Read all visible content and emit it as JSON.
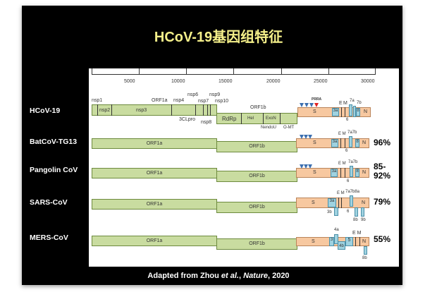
{
  "title": "HCoV-19基因组特征",
  "caption": {
    "prefix": "Adapted from Zhou ",
    "etal": "et al.",
    "mid": ", ",
    "journal": "Nature",
    "suffix": ", 2020"
  },
  "ruler": [
    "5000",
    "10000",
    "15000",
    "20000",
    "25000",
    "30000"
  ],
  "hcov": {
    "name": "HCoV-19",
    "nsp1": "nsp1",
    "nsp2": "nsp2",
    "nsp3": "nsp3",
    "orf1a": "ORF1a",
    "nsp4": "nsp4",
    "nsp6": "nsp6",
    "nsp7": "nsp7",
    "nsp8": "nsp8",
    "nsp9": "nsp9",
    "nsp10": "nsp10",
    "clpro": "3CLpro",
    "orf1b": "ORF1b",
    "rdrp": "RdRp",
    "hel": "Hel",
    "exon": "ExoN",
    "nendou": "NendoU",
    "omt": "O-MT",
    "prra": "PRRA",
    "s": "S",
    "a3": "3a",
    "e": "E",
    "m": "M",
    "o7a": "7a",
    "o7b": "7b",
    "o8": "8",
    "n": "N",
    "o6": "6"
  },
  "rows": [
    {
      "name": "BatCoV-TG13",
      "pct": "96%",
      "orf1a": "ORF1a",
      "orf1b": "ORF1b",
      "s": "S",
      "a3": "3a",
      "em": "E M",
      "o7": "7a7b",
      "o8": "8",
      "n": "N",
      "o6": "6"
    },
    {
      "name": "Pangolin CoV",
      "pct1": "85-",
      "pct2": "92%",
      "orf1a": "ORF1a",
      "orf1b": "ORF1b",
      "s": "S",
      "a3": "3a",
      "em": "E M",
      "o7": "7a7b",
      "o8": "8",
      "n": "N",
      "o6": "6"
    },
    {
      "name": "SARS-CoV",
      "pct": "79%",
      "orf1a": "ORF1a",
      "orf1b": "ORF1b",
      "s": "S",
      "a3": "3a",
      "em": "E M",
      "o7": "7a7b8a",
      "n": "N",
      "o6": "6",
      "b3": "3b",
      "b8": "8b",
      "b9": "9b"
    },
    {
      "name": "MERS-CoV",
      "pct": "55%",
      "orf1a": "ORF1a",
      "orf1b": "ORF1b",
      "s": "S",
      "o3": "3",
      "a4": "4a",
      "b4": "4b",
      "o5": "5",
      "em": "E M",
      "n": "N",
      "b8": "8b"
    }
  ],
  "colors": {
    "green": "#c9dca0",
    "orange": "#f7c8a0",
    "blue": "#9fd2e0",
    "title": "#f5f08a",
    "prra": "#e02020"
  }
}
